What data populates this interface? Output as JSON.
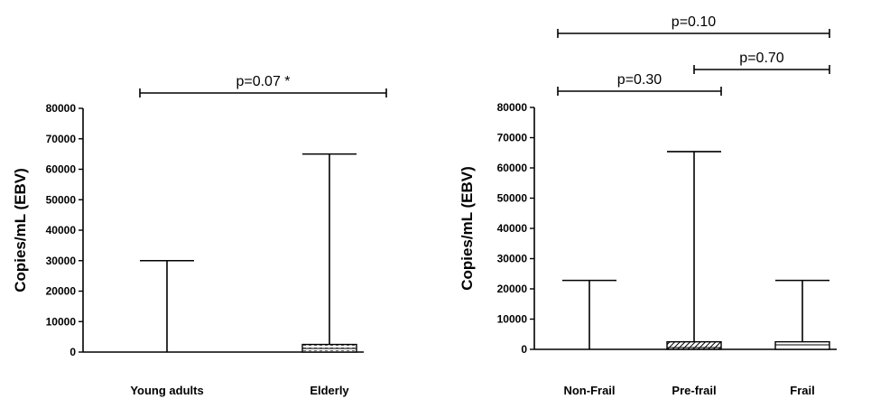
{
  "chart_data": [
    {
      "type": "box",
      "ylabel": "Copies/mL (EBV)",
      "ylim": [
        0,
        80000
      ],
      "yticks": [
        0,
        10000,
        20000,
        30000,
        40000,
        50000,
        60000,
        70000,
        80000
      ],
      "categories": [
        "Young adults",
        "Elderly"
      ],
      "boxes": [
        {
          "category": "Young adults",
          "min": 0,
          "q1": 0,
          "median": 0,
          "q3": 0,
          "max": 30000,
          "fill": "none"
        },
        {
          "category": "Elderly",
          "min": 0,
          "q1": 0,
          "median": 1200,
          "q3": 2500,
          "max": 65000,
          "fill": "dotted"
        }
      ],
      "comparisons": [
        {
          "from": 0,
          "to": 1,
          "label": "p=0.07 *",
          "level": 0
        }
      ]
    },
    {
      "type": "box",
      "ylabel": "Copies/mL (EBV)",
      "ylim": [
        0,
        80000
      ],
      "yticks": [
        0,
        10000,
        20000,
        30000,
        40000,
        50000,
        60000,
        70000,
        80000
      ],
      "categories": [
        "Non-Frail",
        "Pre-frail",
        "Frail"
      ],
      "boxes": [
        {
          "category": "Non-Frail",
          "min": 0,
          "q1": 0,
          "median": 0,
          "q3": 0,
          "max": 22800,
          "fill": "none"
        },
        {
          "category": "Pre-frail",
          "min": 0,
          "q1": 0,
          "median": 600,
          "q3": 2500,
          "max": 65400,
          "fill": "hatched"
        },
        {
          "category": "Frail",
          "min": 0,
          "q1": 0,
          "median": 1500,
          "q3": 2500,
          "max": 22800,
          "fill": "none"
        }
      ],
      "comparisons": [
        {
          "from": 0,
          "to": 1,
          "label": "p=0.30",
          "level": 0
        },
        {
          "from": 1,
          "to": 2,
          "label": "p=0.70",
          "level": 1
        },
        {
          "from": 0,
          "to": 2,
          "label": "p=0.10",
          "level": 2
        }
      ]
    }
  ]
}
